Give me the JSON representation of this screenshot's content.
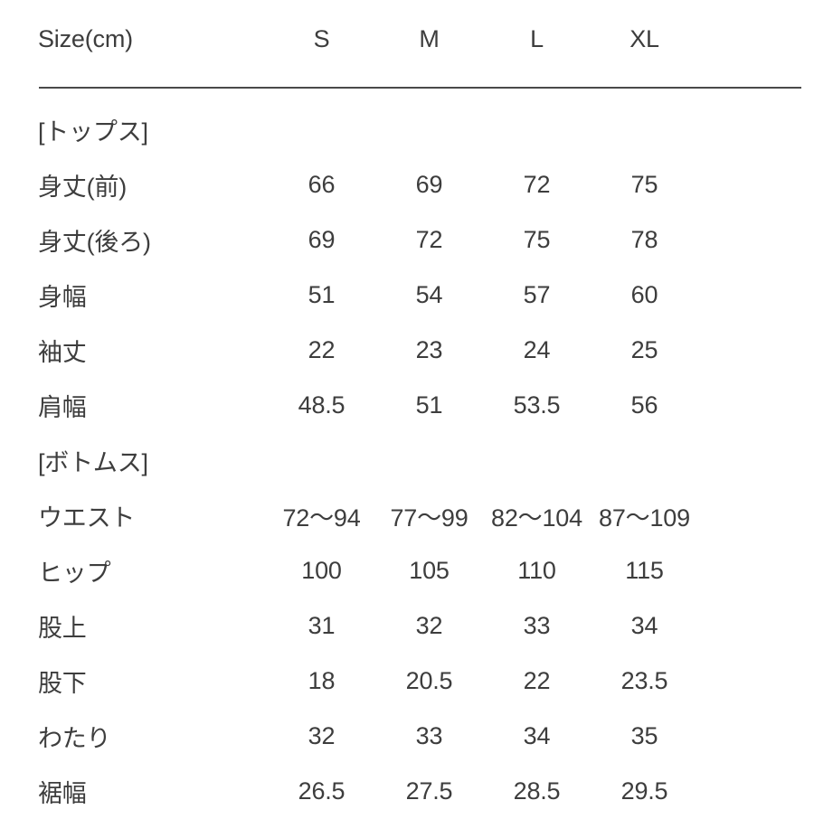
{
  "table": {
    "header": {
      "label": "Size(cm)",
      "columns": [
        "S",
        "M",
        "L",
        "XL"
      ]
    },
    "sections": [
      {
        "title": "[トップス]",
        "rows": [
          {
            "label": "身丈(前)",
            "values": [
              "66",
              "69",
              "72",
              "75"
            ]
          },
          {
            "label": "身丈(後ろ)",
            "values": [
              "69",
              "72",
              "75",
              "78"
            ]
          },
          {
            "label": "身幅",
            "values": [
              "51",
              "54",
              "57",
              "60"
            ]
          },
          {
            "label": "袖丈",
            "values": [
              "22",
              "23",
              "24",
              "25"
            ]
          },
          {
            "label": "肩幅",
            "values": [
              "48.5",
              "51",
              "53.5",
              "56"
            ]
          }
        ]
      },
      {
        "title": "[ボトムス]",
        "rows": [
          {
            "label": "ウエスト",
            "values": [
              "72〜94",
              "77〜99",
              "82〜104",
              "87〜109"
            ]
          },
          {
            "label": "ヒップ",
            "values": [
              "100",
              "105",
              "110",
              "115"
            ]
          },
          {
            "label": "股上",
            "values": [
              "31",
              "32",
              "33",
              "34"
            ]
          },
          {
            "label": "股下",
            "values": [
              "18",
              "20.5",
              "22",
              "23.5"
            ]
          },
          {
            "label": "わたり",
            "values": [
              "32",
              "33",
              "34",
              "35"
            ]
          },
          {
            "label": "裾幅",
            "values": [
              "26.5",
              "27.5",
              "28.5",
              "29.5"
            ]
          }
        ]
      }
    ]
  },
  "colors": {
    "text": "#3d3d3d",
    "separator_line": "#4a4a4a",
    "background": "#ffffff"
  }
}
